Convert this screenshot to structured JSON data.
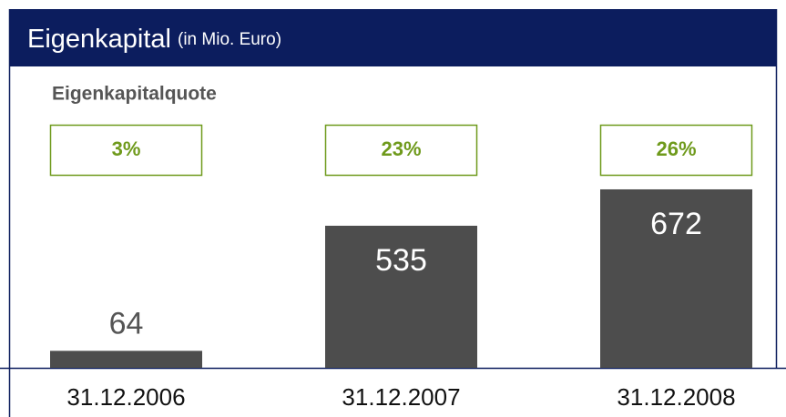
{
  "chart_data": {
    "type": "bar",
    "title": "Eigenkapital",
    "subtitle": "(in Mio. Euro)",
    "ratio_title": "Eigenkapitalquote",
    "categories": [
      "31.12.2006",
      "31.12.2007",
      "31.12.2008"
    ],
    "values": [
      64,
      535,
      672
    ],
    "color": "#4d4d4d",
    "ratios": [
      3,
      23,
      26
    ],
    "ratio_labels": [
      "3%",
      "23%",
      "26%"
    ],
    "ratio_color": "#6f9a1c"
  }
}
